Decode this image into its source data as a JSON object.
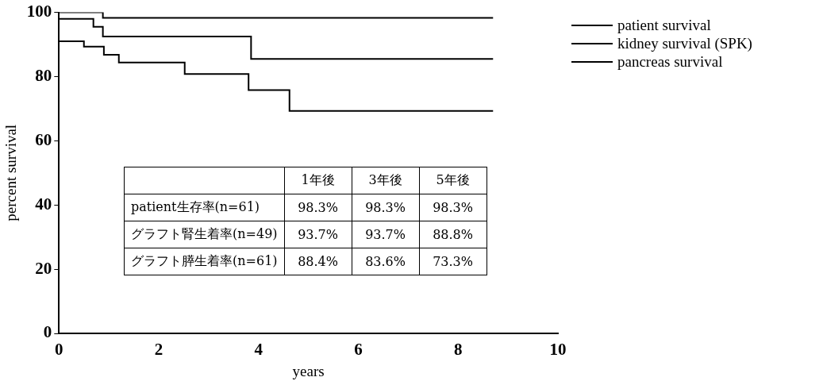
{
  "chart_data": [
    {
      "type": "step",
      "xlabel": "years",
      "ylabel": "percent survival",
      "xlim": [
        0,
        10
      ],
      "xticks": [
        0,
        2,
        4,
        6,
        8,
        10
      ],
      "ylim": [
        0,
        100
      ],
      "yticks": [
        0,
        20,
        40,
        60,
        80,
        100
      ],
      "grid": false,
      "legend": "top right",
      "marker": "none",
      "series": [
        {
          "name": "patient survival",
          "color": "#000000",
          "x": [
            0,
            0.88,
            8.7
          ],
          "values": [
            100,
            98.3,
            98.3
          ]
        },
        {
          "name": "kidney survival (SPK)",
          "color": "#000000",
          "x": [
            0,
            0.69,
            0.88,
            3.85,
            8.7
          ],
          "values": [
            98,
            95.5,
            92.5,
            85.5,
            85.5
          ]
        },
        {
          "name": "pancreas survival",
          "color": "#000000",
          "x": [
            0,
            0.5,
            0.9,
            1.2,
            2.52,
            3.8,
            4.62,
            8.7
          ],
          "values": [
            91,
            89.3,
            86.8,
            84.4,
            80.8,
            75.8,
            69.3,
            69.3
          ]
        }
      ]
    },
    {
      "type": "other",
      "categories": [
        "1年後",
        "3年後",
        "5年後"
      ],
      "y_categories": [
        "patient生存率(n=61)",
        "グラフト腎生着率(n=49)",
        "グラフト膵生着率(n=61)"
      ],
      "cell_labels": [
        [
          "98.3%",
          "98.3%",
          "98.3%"
        ],
        [
          "93.7%",
          "93.7%",
          "88.8%"
        ],
        [
          "88.4%",
          "83.6%",
          "73.3%"
        ]
      ]
    }
  ]
}
